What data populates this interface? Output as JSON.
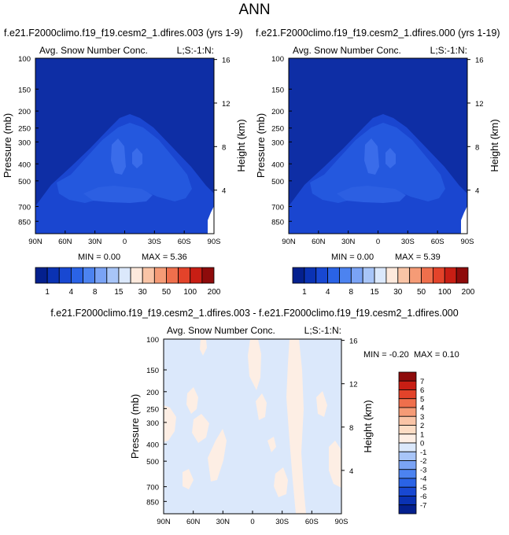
{
  "main_title": "ANN",
  "chart_data": [
    {
      "type": "heatmap",
      "title": "f.e21.F2000climo.f19_f19.cesm2_1.dfires.003 (yrs 1-9)",
      "variable": "Avg. Snow Number Conc.",
      "corner_label": "L;S:-1:N:",
      "xlabel": "",
      "ylabel": "Pressure (mb)",
      "y2label": "Height (km)",
      "x_ticks": [
        "90N",
        "60N",
        "30N",
        "0",
        "30S",
        "60S",
        "90S"
      ],
      "y_ticks": [
        "100",
        "150",
        "200",
        "250",
        "300",
        "400",
        "500",
        "700",
        "850"
      ],
      "y2_ticks": [
        "16",
        "12",
        "8",
        "4"
      ],
      "ylim": [
        100,
        1000
      ],
      "y_scale": "log",
      "min_label": "MIN =  0.00",
      "max_label": "MAX =  5.36",
      "colorbar_labels": [
        "1",
        "4",
        "8",
        "15",
        "30",
        "50",
        "100",
        "200"
      ],
      "colorbar_colors": [
        "#04208e",
        "#0a32b3",
        "#1848d2",
        "#2a63e6",
        "#4c83f0",
        "#7aa3f5",
        "#a8c5f8",
        "#dbe8fb",
        "#fde9dc",
        "#f9c4a6",
        "#f59b76",
        "#ef6f4c",
        "#e3432a",
        "#c81e14",
        "#8e0b0b"
      ]
    },
    {
      "type": "heatmap",
      "title": "f.e21.F2000climo.f19_f19.cesm2_1.dfires.000 (yrs 1-19)",
      "variable": "Avg. Snow Number Conc.",
      "corner_label": "L;S:-1:N:",
      "xlabel": "",
      "ylabel": "Pressure (mb)",
      "y2label": "Height (km)",
      "x_ticks": [
        "90N",
        "60N",
        "30N",
        "0",
        "30S",
        "60S",
        "90S"
      ],
      "y_ticks": [
        "100",
        "150",
        "200",
        "250",
        "300",
        "400",
        "500",
        "700",
        "850"
      ],
      "y2_ticks": [
        "16",
        "12",
        "8",
        "4"
      ],
      "ylim": [
        100,
        1000
      ],
      "y_scale": "log",
      "min_label": "MIN =  0.00",
      "max_label": "MAX =  5.39",
      "colorbar_labels": [
        "1",
        "4",
        "8",
        "15",
        "30",
        "50",
        "100",
        "200"
      ],
      "colorbar_colors": [
        "#04208e",
        "#0a32b3",
        "#1848d2",
        "#2a63e6",
        "#4c83f0",
        "#7aa3f5",
        "#a8c5f8",
        "#dbe8fb",
        "#fde9dc",
        "#f9c4a6",
        "#f59b76",
        "#ef6f4c",
        "#e3432a",
        "#c81e14",
        "#8e0b0b"
      ]
    },
    {
      "type": "heatmap",
      "title": "f.e21.F2000climo.f19_f19.cesm2_1.dfires.003 - f.e21.F2000climo.f19_f19.cesm2_1.dfires.000",
      "variable": "Avg. Snow Number Conc.",
      "corner_label": "L;S:-1:N:",
      "xlabel": "",
      "ylabel": "Pressure (mb)",
      "y2label": "Height (km)",
      "x_ticks": [
        "90N",
        "60N",
        "30N",
        "0",
        "30S",
        "60S",
        "90S"
      ],
      "y_ticks": [
        "100",
        "150",
        "200",
        "250",
        "300",
        "400",
        "500",
        "700",
        "850"
      ],
      "y2_ticks": [
        "16",
        "12",
        "8",
        "4"
      ],
      "ylim": [
        100,
        1000
      ],
      "y_scale": "log",
      "min_label": "MIN = -0.20",
      "max_label": "MAX =  0.10",
      "colorbar_labels": [
        "7",
        "6",
        "5",
        "4",
        "3",
        "2",
        "1",
        "0",
        "-1",
        "-2",
        "-3",
        "-4",
        "-5",
        "-6",
        "-7"
      ],
      "colorbar_colors": [
        "#8e0b0b",
        "#c81e14",
        "#e3432a",
        "#ef6f4c",
        "#f59b76",
        "#f9c4a6",
        "#fcdcc4",
        "#fdeee4",
        "#dbe8fb",
        "#a8c5f8",
        "#7aa3f5",
        "#4c83f0",
        "#2a63e6",
        "#1848d2",
        "#0a32b3",
        "#04208e"
      ]
    }
  ]
}
